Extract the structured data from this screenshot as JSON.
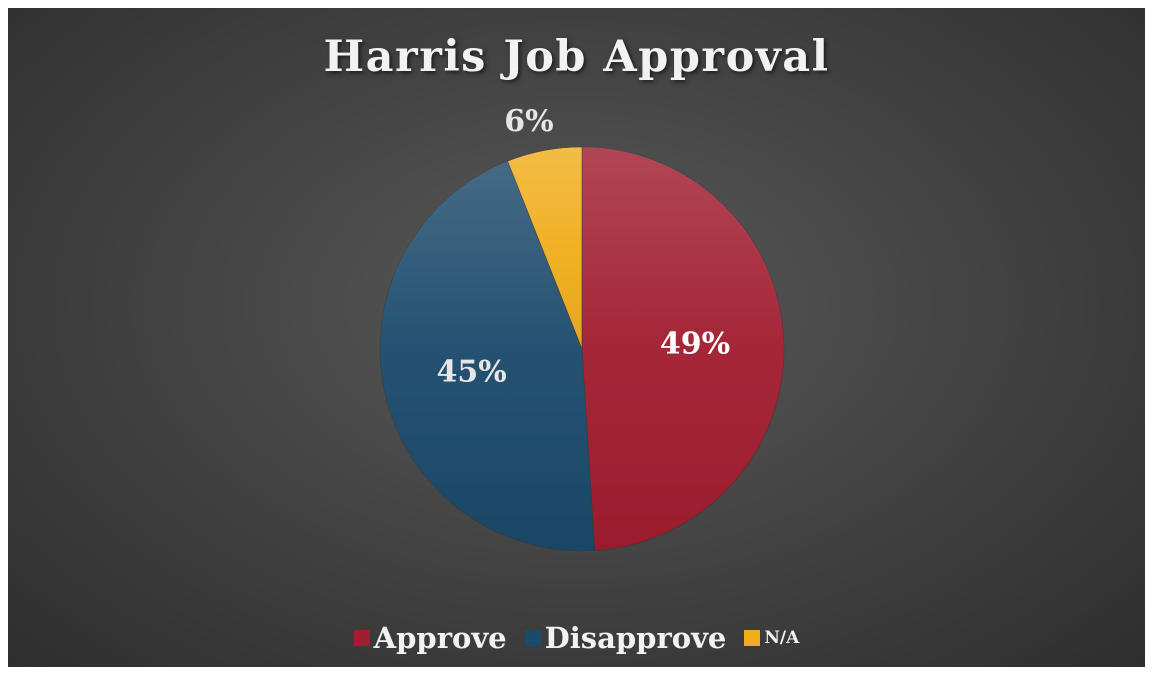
{
  "chart_data": {
    "type": "pie",
    "title": "Harris Job Approval",
    "categories": [
      "Approve",
      "Disapprove",
      "N/A"
    ],
    "values": [
      49,
      45,
      6
    ],
    "data_labels": [
      "49%",
      "45%",
      "6%"
    ],
    "colors": [
      "#a11d2f",
      "#1b4a6b",
      "#f0ae1e"
    ],
    "legend": "bottom",
    "start_angle_deg": 0,
    "direction": "clockwise"
  }
}
